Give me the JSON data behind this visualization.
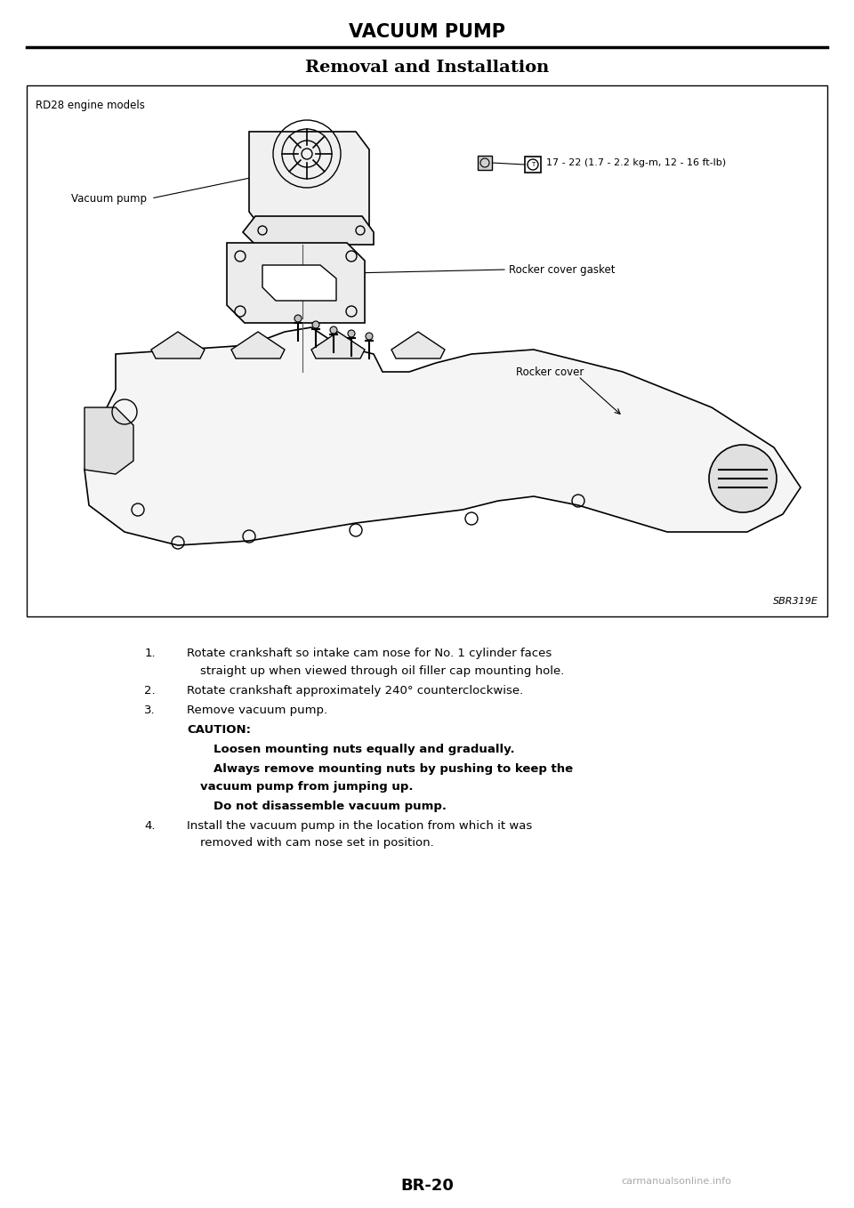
{
  "page_title": "VACUUM PUMP",
  "section_title": "Removal and Installation",
  "diagram_label": "RD28 engine models",
  "diagram_code": "SBR319E",
  "torque_label": "17 - 22 (1.7 - 2.2 kg-m, 12 - 16 ft-lb)",
  "part_labels": [
    "Vacuum pump",
    "Rocker cover gasket",
    "Rocker cover"
  ],
  "footer": "BR-20",
  "watermark": "carmanualsonline.info",
  "instructions": [
    {
      "num": "1.",
      "text": "Rotate crankshaft so intake cam nose for No. 1 cylinder faces straight up when viewed through oil filler cap mounting hole."
    },
    {
      "num": "2.",
      "text": "Rotate crankshaft approximately 240° counterclockwise."
    },
    {
      "num": "3.",
      "text": "Remove vacuum pump."
    },
    {
      "num": "CAUTION:",
      "text": "",
      "is_caution": true
    },
    {
      "num": "",
      "text": "Loosen mounting nuts equally and gradually.",
      "bold": true
    },
    {
      "num": "",
      "text": "Always remove mounting nuts by pushing to keep the vacuum pump from jumping up.",
      "bold": true
    },
    {
      "num": "",
      "text": "Do not disassemble vacuum pump.",
      "bold": true
    },
    {
      "num": "4.",
      "text": "Install the vacuum pump in the location from which it was removed with cam nose set in position."
    }
  ],
  "bg_color": "#ffffff",
  "text_color": "#000000",
  "diagram_bg": "#ffffff",
  "diagram_border": "#000000"
}
